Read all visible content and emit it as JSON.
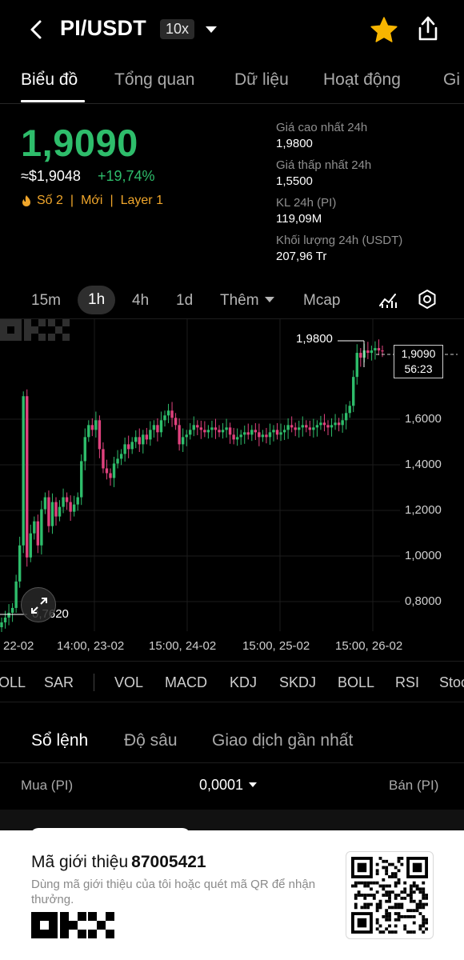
{
  "header": {
    "pair": "PI/USDT",
    "leverage": "10x",
    "icons": [
      "back-arrow-icon",
      "caret-down-icon",
      "star-icon",
      "share-icon"
    ],
    "star_color": "#f7b500"
  },
  "tabs": [
    {
      "label": "Biểu đồ",
      "active": true
    },
    {
      "label": "Tổng quan"
    },
    {
      "label": "Dữ liệu"
    },
    {
      "label": "Hoạt động"
    },
    {
      "label": "Gi"
    }
  ],
  "price": {
    "last": "1,9090",
    "usd": "≈$1,9048",
    "change": "+19,74%",
    "up_color": "#2ebd6b",
    "down_color": "#e0427e",
    "tags": [
      "Số 2",
      "Mới",
      "Layer 1"
    ],
    "tag_color": "#f0a62b"
  },
  "stats": [
    {
      "label": "Giá cao nhất 24h",
      "value": "1,9800"
    },
    {
      "label": "Giá thấp nhất 24h",
      "value": "1,5500"
    },
    {
      "label": "KL 24h (PI)",
      "value": "119,09M"
    },
    {
      "label": "Khối lượng 24h (USDT)",
      "value": "207,96 Tr"
    }
  ],
  "intervals": {
    "items": [
      "15m",
      "1h",
      "4h",
      "1d"
    ],
    "active": "1h",
    "more": "Thêm",
    "mcap": "Mcap"
  },
  "chart": {
    "y_ticks": [
      "1,6000",
      "1,4000",
      "1,2000",
      "1,0000",
      "0,8000"
    ],
    "x_ticks": [
      "22-02",
      "14:00, 23-02",
      "15:00, 24-02",
      "15:00, 25-02",
      "15:00, 26-02"
    ],
    "high_label": "1,9800",
    "low_label": "0,7620",
    "current_price": "1,9090",
    "countdown": "56:23"
  },
  "chart_data": {
    "type": "candlestick",
    "ylim": [
      0.75,
      2.0
    ],
    "close": [
      0.78,
      0.8,
      0.82,
      0.84,
      0.95,
      1.1,
      1.72,
      1.05,
      1.15,
      1.2,
      1.1,
      1.25,
      1.3,
      1.18,
      1.28,
      1.22,
      1.26,
      1.3,
      1.28,
      1.24,
      1.27,
      1.3,
      1.45,
      1.55,
      1.6,
      1.58,
      1.62,
      1.5,
      1.42,
      1.4,
      1.38,
      1.44,
      1.46,
      1.48,
      1.52,
      1.5,
      1.53,
      1.55,
      1.52,
      1.56,
      1.54,
      1.58,
      1.6,
      1.57,
      1.62,
      1.64,
      1.66,
      1.63,
      1.6,
      1.52,
      1.55,
      1.56,
      1.58,
      1.6,
      1.59,
      1.58,
      1.57,
      1.58,
      1.59,
      1.58,
      1.57,
      1.58,
      1.59,
      1.56,
      1.54,
      1.55,
      1.56,
      1.57,
      1.56,
      1.58,
      1.57,
      1.55,
      1.56,
      1.55,
      1.57,
      1.58,
      1.56,
      1.57,
      1.58,
      1.6,
      1.59,
      1.58,
      1.59,
      1.6,
      1.59,
      1.58,
      1.59,
      1.6,
      1.61,
      1.6,
      1.59,
      1.6,
      1.61,
      1.6,
      1.62,
      1.65,
      1.68,
      1.8,
      1.9,
      1.88,
      1.91,
      1.9,
      1.91,
      1.92,
      1.91,
      1.909
    ]
  },
  "indicators": [
    "OLL",
    "SAR",
    "VOL",
    "MACD",
    "KDJ",
    "SKDJ",
    "BOLL",
    "RSI",
    "Stoc"
  ],
  "orderbook": {
    "tabs": [
      "Sổ lệnh",
      "Độ sâu",
      "Giao dịch gần nhất"
    ],
    "buy": "Mua (PI)",
    "tick": "0,0001",
    "sell": "Bán (PI)"
  },
  "referral": {
    "title": "Mã giới thiệu",
    "code": "87005421",
    "desc": "Dùng mã giới thiệu của tôi hoặc quét mã QR để nhận thưởng."
  }
}
